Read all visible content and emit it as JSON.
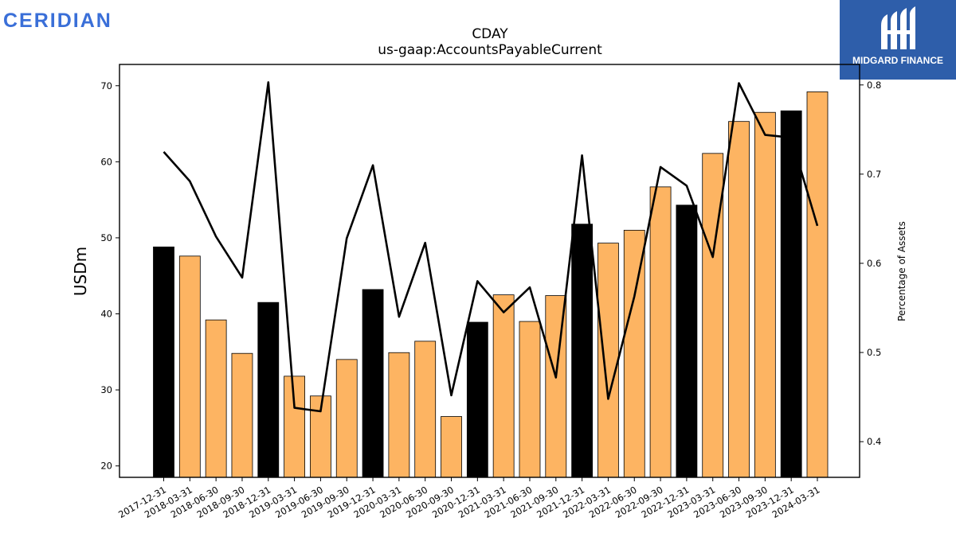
{
  "branding": {
    "company_logo_text": "CERIDIAN",
    "company_logo_color": "#3a6fd8",
    "partner_name": "MIDGARD FINANCE"
  },
  "chart_data": {
    "type": "bar",
    "title": "CDAY",
    "subtitle": "us-gaap:AccountsPayableCurrent",
    "ylabel": "USDm",
    "y2label": "Percentage of Assets",
    "ylim": [
      18.5,
      72.8
    ],
    "y2lim": [
      0.36,
      0.823
    ],
    "yticks": [
      20,
      30,
      40,
      50,
      60,
      70
    ],
    "y2ticks": [
      0.4,
      0.5,
      0.6,
      0.7,
      0.8
    ],
    "categories": [
      "2017-12-31",
      "2018-03-31",
      "2018-06-30",
      "2018-09-30",
      "2018-12-31",
      "2019-03-31",
      "2019-06-30",
      "2019-09-30",
      "2019-12-31",
      "2020-03-31",
      "2020-06-30",
      "2020-09-30",
      "2020-12-31",
      "2021-03-31",
      "2021-06-30",
      "2021-09-30",
      "2021-12-31",
      "2022-03-31",
      "2022-06-30",
      "2022-09-30",
      "2022-12-31",
      "2023-03-31",
      "2023-06-30",
      "2023-09-30",
      "2023-12-31",
      "2024-03-31"
    ],
    "series": [
      {
        "type": "bar",
        "values": [
          48.8,
          47.6,
          39.2,
          34.8,
          41.5,
          31.8,
          29.2,
          34.0,
          43.2,
          34.9,
          36.4,
          26.5,
          38.9,
          42.5,
          39.0,
          42.4,
          51.8,
          49.3,
          51.0,
          56.7,
          54.3,
          61.1,
          65.3,
          66.5,
          66.7,
          69.2
        ],
        "colors": [
          "#000000",
          "#fdb462",
          "#fdb462",
          "#fdb462",
          "#000000",
          "#fdb462",
          "#fdb462",
          "#fdb462",
          "#000000",
          "#fdb462",
          "#fdb462",
          "#fdb462",
          "#000000",
          "#fdb462",
          "#fdb462",
          "#fdb462",
          "#000000",
          "#fdb462",
          "#fdb462",
          "#fdb462",
          "#000000",
          "#fdb462",
          "#fdb462",
          "#fdb462",
          "#000000",
          "#fdb462"
        ]
      },
      {
        "type": "line",
        "axis": "right",
        "color": "#000000",
        "values": [
          0.725,
          0.692,
          0.63,
          0.584,
          0.803,
          0.438,
          0.434,
          0.628,
          0.71,
          0.54,
          0.623,
          0.452,
          0.58,
          0.545,
          0.573,
          0.472,
          0.721,
          0.448,
          0.563,
          0.708,
          0.687,
          0.607,
          0.802,
          0.744,
          0.741,
          0.642
        ]
      }
    ],
    "legend": "none",
    "grid": false
  }
}
